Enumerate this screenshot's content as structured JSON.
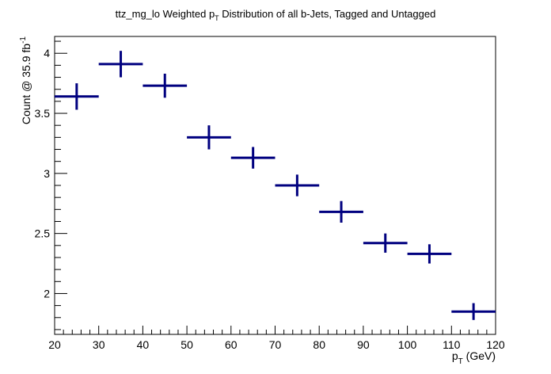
{
  "chart_data": {
    "type": "scatter",
    "title": {
      "pre": "ttz_mg_lo Weighted p",
      "sub": "T",
      "post": " Distribution of all b-Jets, Tagged and Untagged"
    },
    "xlabel": {
      "main": "p",
      "sub": "T",
      "post": " (GeV)"
    },
    "ylabel": {
      "main": "Count @ 35.9 fb",
      "sup": "-1"
    },
    "xlim": [
      20,
      120
    ],
    "ylim": [
      1.66,
      4.14
    ],
    "x_ticks": [
      20,
      30,
      40,
      50,
      60,
      70,
      80,
      90,
      100,
      110,
      120
    ],
    "x_tick_labels": [
      "20",
      "30",
      "40",
      "50",
      "60",
      "70",
      "80",
      "90",
      "100",
      "110",
      "120"
    ],
    "y_ticks": [
      2,
      2.5,
      3,
      3.5,
      4
    ],
    "y_tick_labels": [
      "2",
      "2.5",
      "3",
      "3.5",
      "4"
    ],
    "grid": false,
    "marker_color": "#00007f",
    "series": [
      {
        "points": [
          {
            "x": 25,
            "xerr": 5,
            "y": 3.64,
            "yerr": 0.11
          },
          {
            "x": 35,
            "xerr": 5,
            "y": 3.91,
            "yerr": 0.11
          },
          {
            "x": 45,
            "xerr": 5,
            "y": 3.73,
            "yerr": 0.1
          },
          {
            "x": 55,
            "xerr": 5,
            "y": 3.3,
            "yerr": 0.1
          },
          {
            "x": 65,
            "xerr": 5,
            "y": 3.13,
            "yerr": 0.09
          },
          {
            "x": 75,
            "xerr": 5,
            "y": 2.9,
            "yerr": 0.09
          },
          {
            "x": 85,
            "xerr": 5,
            "y": 2.68,
            "yerr": 0.09
          },
          {
            "x": 95,
            "xerr": 5,
            "y": 2.42,
            "yerr": 0.08
          },
          {
            "x": 105,
            "xerr": 5,
            "y": 2.33,
            "yerr": 0.08
          },
          {
            "x": 115,
            "xerr": 5,
            "y": 1.85,
            "yerr": 0.07
          }
        ]
      }
    ]
  }
}
